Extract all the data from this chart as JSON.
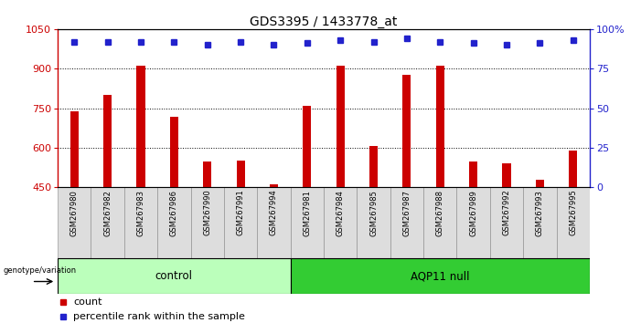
{
  "title": "GDS3395 / 1433778_at",
  "samples": [
    "GSM267980",
    "GSM267982",
    "GSM267983",
    "GSM267986",
    "GSM267990",
    "GSM267991",
    "GSM267994",
    "GSM267981",
    "GSM267984",
    "GSM267985",
    "GSM267987",
    "GSM267988",
    "GSM267989",
    "GSM267992",
    "GSM267993",
    "GSM267995"
  ],
  "counts": [
    738,
    800,
    910,
    718,
    548,
    550,
    462,
    760,
    910,
    608,
    878,
    910,
    548,
    540,
    478,
    590
  ],
  "percentile_ranks": [
    92,
    92,
    92,
    92,
    90,
    92,
    90,
    91,
    93,
    92,
    94,
    92,
    91,
    90,
    91,
    93
  ],
  "control_count": 7,
  "ymin": 450,
  "ymax": 1050,
  "yticks_left": [
    450,
    600,
    750,
    900,
    1050
  ],
  "yticks_right": [
    0,
    25,
    50,
    75,
    100
  ],
  "grid_values": [
    600,
    750,
    900
  ],
  "bar_color": "#cc0000",
  "dot_color": "#2222cc",
  "control_bg": "#bbffbb",
  "aqp11_bg": "#33cc33",
  "sample_col_bg": "#dddddd",
  "bg_color": "#ffffff"
}
